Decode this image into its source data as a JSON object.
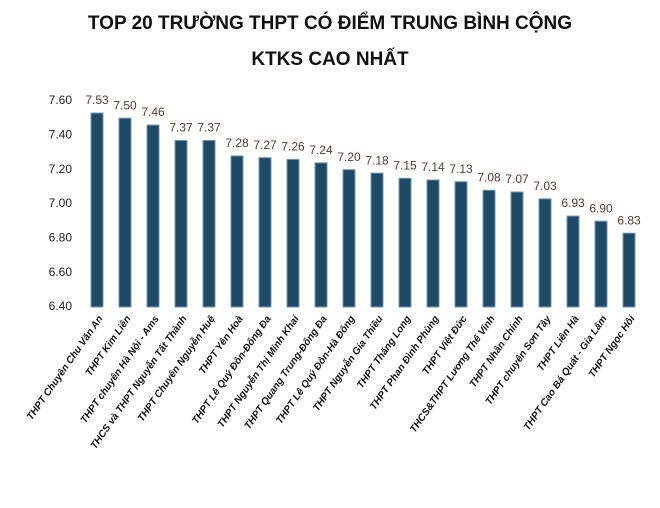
{
  "chart_data": {
    "type": "bar",
    "title": [
      "TOP 20 TRƯỜNG THPT CÓ ĐIỂM TRUNG BÌNH CỘNG",
      "KTKS CAO NHẤT"
    ],
    "categories": [
      "THPT Chuyên Chu Văn An",
      "THPT Kim Liên",
      "THPT chuyên Hà Nội - Ams",
      "THCS và THPT Nguyễn Tất Thành",
      "THPT Chuyên Nguyễn Huệ",
      "THPT Yên Hoà",
      "THPT Lê Quý Đôn-Đống Đa",
      "THPT Nguyễn Thị Minh Khai",
      "THPT Quang Trung-Đống Đa",
      "THPT Lê Quý Đôn-Hà Đông",
      "THPT Nguyễn Gia Thiều",
      "THPT Thăng Long",
      "THPT Phan Đình Phùng",
      "THPT Việt Đức",
      "THCS&THPT Lương Thế Vinh",
      "THPT Nhân Chính",
      "THPT chuyên Sơn Tây",
      "THPT Liên Hà",
      "THPT Cao Bá Quát - Gia Lâm",
      "THPT Ngọc Hồi"
    ],
    "values": [
      7.53,
      7.5,
      7.46,
      7.37,
      7.37,
      7.28,
      7.27,
      7.26,
      7.24,
      7.2,
      7.18,
      7.15,
      7.14,
      7.13,
      7.08,
      7.07,
      7.03,
      6.93,
      6.9,
      6.83
    ],
    "value_labels": [
      "7.53",
      "7.50",
      "7.46",
      "7.37",
      "7.37",
      "7.28",
      "7.27",
      "7.26",
      "7.24",
      "7.20",
      "7.18",
      "7.15",
      "7.14",
      "7.13",
      "7.08",
      "7.07",
      "7.03",
      "6.93",
      "6.90",
      "6.83"
    ],
    "color": "#1e4a66",
    "ylim": [
      6.4,
      7.6
    ],
    "yticks": [
      {
        "value": 6.4,
        "label": "6.40"
      },
      {
        "value": 6.6,
        "label": "6.60"
      },
      {
        "value": 6.8,
        "label": "6.80"
      },
      {
        "value": 7,
        "label": "7.00"
      },
      {
        "value": 7.2,
        "label": "7.20"
      },
      {
        "value": 7.4,
        "label": "7.40"
      },
      {
        "value": 7.6,
        "label": "7.60"
      }
    ],
    "grid": false
  }
}
